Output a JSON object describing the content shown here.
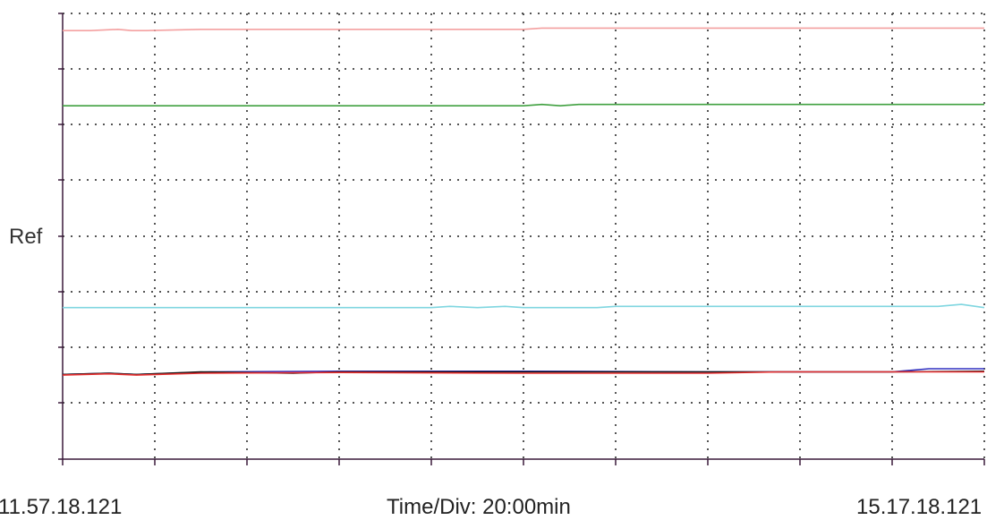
{
  "chart_data": {
    "type": "line",
    "title": "",
    "ylabel": "Ref",
    "x_start": "11.57.18.121",
    "x_end": "15.17.18.121",
    "time_per_div": "Time/Div: 20:00min",
    "x_divisions": 10,
    "y_divisions": 7,
    "grid": true,
    "grid_style": "dotted",
    "y_axis_values_shown": false,
    "series": [
      {
        "color": "#f4a0a0",
        "x": [
          0,
          0.3,
          0.6,
          0.75,
          0.9,
          1.5,
          5.0,
          5.2,
          6.0,
          8.0,
          10.0
        ],
        "y": [
          6.73,
          6.73,
          6.75,
          6.73,
          6.73,
          6.75,
          6.75,
          6.77,
          6.77,
          6.77,
          6.77
        ]
      },
      {
        "color": "#40a040",
        "x": [
          0,
          5.0,
          5.2,
          5.4,
          5.6,
          5.8,
          10.0
        ],
        "y": [
          5.55,
          5.55,
          5.57,
          5.55,
          5.57,
          5.57,
          5.57
        ]
      },
      {
        "color": "#7fd6e0",
        "x": [
          0,
          4.0,
          4.2,
          4.5,
          4.8,
          5.0,
          5.8,
          6.0,
          9.5,
          9.75,
          10.0
        ],
        "y": [
          2.38,
          2.38,
          2.4,
          2.38,
          2.4,
          2.38,
          2.38,
          2.4,
          2.4,
          2.43,
          2.38
        ]
      },
      {
        "color": "#3030c0",
        "x": [
          0,
          0.5,
          0.8,
          1.6,
          3.0,
          5.0,
          7.0,
          9.0,
          9.4,
          10.0
        ],
        "y": [
          1.33,
          1.35,
          1.33,
          1.37,
          1.38,
          1.38,
          1.37,
          1.37,
          1.42,
          1.42
        ]
      },
      {
        "color": "#111111",
        "x": [
          0,
          0.5,
          0.8,
          1.5,
          2.5,
          3.0,
          5.0,
          7.0,
          9.0,
          10.0
        ],
        "y": [
          1.33,
          1.35,
          1.33,
          1.37,
          1.35,
          1.37,
          1.37,
          1.37,
          1.37,
          1.38
        ]
      },
      {
        "color": "#e83030",
        "x": [
          0,
          0.5,
          0.8,
          1.5,
          3.0,
          5.0,
          7.0,
          7.8,
          8.0,
          9.0,
          10.0
        ],
        "y": [
          1.32,
          1.34,
          1.32,
          1.35,
          1.36,
          1.35,
          1.35,
          1.37,
          1.37,
          1.37,
          1.37
        ]
      }
    ]
  }
}
